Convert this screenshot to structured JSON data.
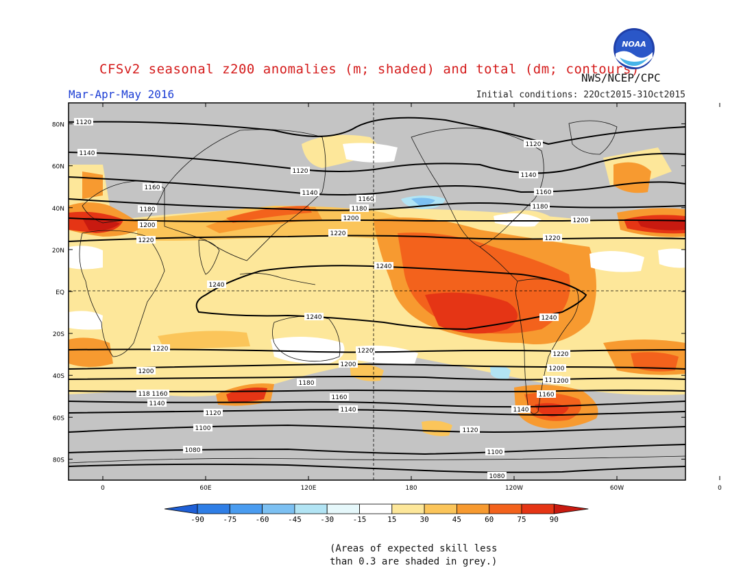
{
  "header": {
    "title": "CFSv2 seasonal z200 anomalies (m; shaded) and total (dm; contours)",
    "season": "Mar-Apr-May 2016",
    "initial_conditions": "Initial conditions: 22Oct2015-31Oct2015",
    "agency": "NWS/NCEP/CPC",
    "logo_text": "NOAA"
  },
  "map": {
    "lat_labels": [
      "80N",
      "60N",
      "40N",
      "20N",
      "EQ",
      "20S",
      "40S",
      "60S",
      "80S"
    ],
    "lon_labels": [
      "0",
      "60E",
      "120E",
      "180",
      "120W",
      "60W",
      "0"
    ]
  },
  "colorbar": {
    "ticks": [
      "-90",
      "-75",
      "-60",
      "-45",
      "-30",
      "-15",
      "15",
      "30",
      "45",
      "60",
      "75",
      "90"
    ],
    "colors": [
      "#1e5fd6",
      "#2f7ee6",
      "#4a9cf0",
      "#7cc0f2",
      "#b2e4f4",
      "#e6f8fb",
      "#ffffff",
      "#fde79a",
      "#fbc55a",
      "#f79a30",
      "#f3621c",
      "#e53515",
      "#c81a10"
    ]
  },
  "contour_labels": [
    {
      "text": "1120"
    },
    {
      "text": "1140"
    },
    {
      "text": "1160"
    },
    {
      "text": "1180"
    },
    {
      "text": "1200"
    },
    {
      "text": "1220"
    },
    {
      "text": "1240"
    },
    {
      "text": "1240"
    },
    {
      "text": "1220"
    },
    {
      "text": "1200"
    },
    {
      "text": "1180"
    },
    {
      "text": "1160"
    },
    {
      "text": "1140"
    },
    {
      "text": "1120"
    },
    {
      "text": "1100"
    },
    {
      "text": "1080"
    },
    {
      "text": "1120"
    },
    {
      "text": "1140"
    },
    {
      "text": "1160"
    },
    {
      "text": "1180"
    },
    {
      "text": "1200"
    },
    {
      "text": "1220"
    },
    {
      "text": "1240"
    },
    {
      "text": "1220"
    },
    {
      "text": "1200"
    },
    {
      "text": "1180"
    },
    {
      "text": "1160"
    },
    {
      "text": "1140"
    },
    {
      "text": "1120"
    },
    {
      "text": "1100"
    },
    {
      "text": "1080"
    },
    {
      "text": "1120"
    },
    {
      "text": "1140"
    },
    {
      "text": "1160"
    },
    {
      "text": "1180"
    },
    {
      "text": "1200"
    },
    {
      "text": "1220"
    },
    {
      "text": "1240"
    },
    {
      "text": "1200"
    },
    {
      "text": "1220"
    },
    {
      "text": "1180"
    },
    {
      "text": "1200"
    },
    {
      "text": "1160"
    },
    {
      "text": "1140"
    },
    {
      "text": "1120"
    },
    {
      "text": "1100"
    }
  ],
  "footnote": {
    "line1": "(Areas of expected skill less",
    "line2": "than 0.3 are shaded in grey.)"
  }
}
